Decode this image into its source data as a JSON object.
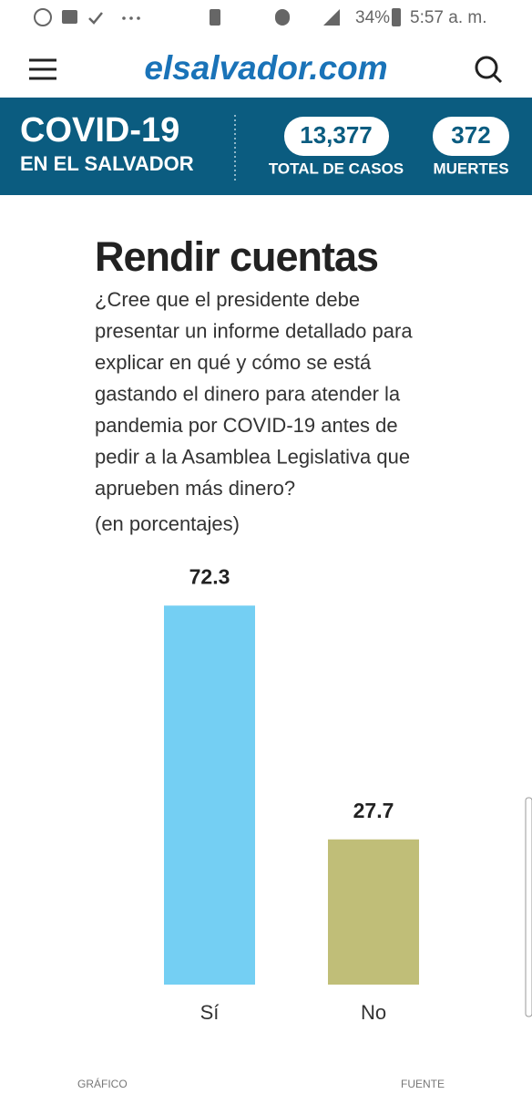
{
  "status_bar": {
    "battery": "34%",
    "time": "5:57 a. m."
  },
  "header": {
    "logo": "elsalvador.com"
  },
  "banner": {
    "title": "COVID-19",
    "subtitle": "EN EL SALVADOR",
    "cases": {
      "value": "13,377",
      "label": "TOTAL DE CASOS"
    },
    "deaths": {
      "value": "372",
      "label": "MUERTES"
    }
  },
  "chart_data": {
    "type": "bar",
    "title": "Rendir cuentas",
    "subtitle": [
      "¿Cree que el presidente debe",
      "presentar un informe detallado para",
      "explicar en qué y cómo se está",
      "gastando el dinero para atender la",
      "pandemia por COVID-19 antes de",
      "pedir a la Asamblea Legislativa que",
      "aprueben más dinero?"
    ],
    "unit_note": "(en porcentajes)",
    "categories": [
      "Sí",
      "No"
    ],
    "values": [
      72.3,
      27.7
    ],
    "colors": [
      "#74cff3",
      "#c0be78"
    ]
  },
  "footer": {
    "left": "GRÁFICO",
    "right": "FUENTE"
  }
}
